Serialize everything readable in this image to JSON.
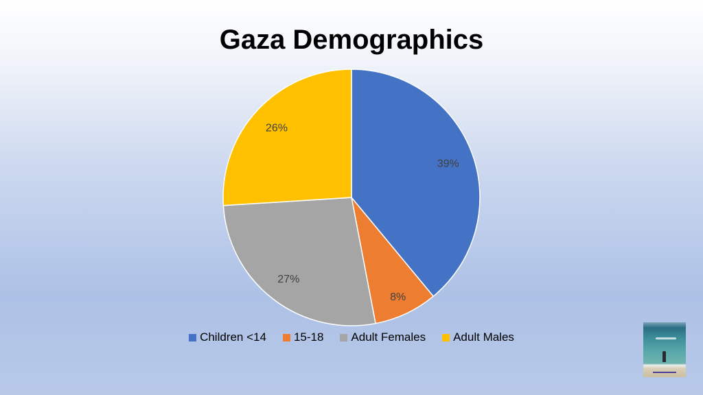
{
  "chart_data": {
    "type": "pie",
    "title": "Gaza Demographics",
    "categories": [
      "Children <14",
      "15-18",
      "Adult Females",
      "Adult Males"
    ],
    "values": [
      39,
      8,
      27,
      26
    ],
    "labels": [
      "39%",
      "8%",
      "27%",
      "26%"
    ],
    "colors": [
      "#4472c4",
      "#ed7d31",
      "#a5a5a5",
      "#ffc000"
    ],
    "start_angle": "12 o'clock, clockwise",
    "legend_position": "bottom"
  },
  "thumbnail": {
    "icon": "beach-photo"
  }
}
